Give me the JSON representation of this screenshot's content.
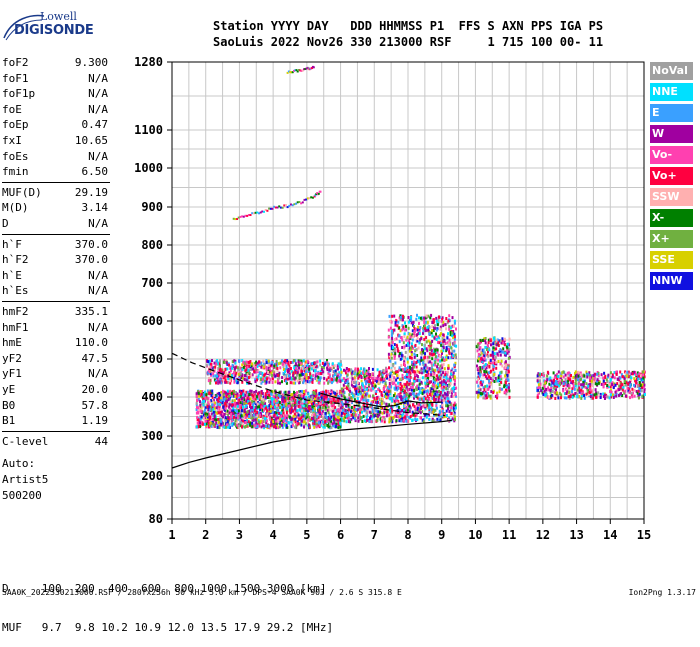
{
  "logo": {
    "brand_top": "Lowell",
    "brand_main": "DIGISONDE"
  },
  "header": {
    "line1": "Station YYYY DAY   DDD HHMMSS P1  FFS S AXN PPS IGA PS",
    "line2": "SaoLuis 2022 Nov26 330 213000 RSF     1 715 100 00- 11"
  },
  "params": [
    {
      "label": "foF2",
      "value": "9.300"
    },
    {
      "label": "foF1",
      "value": "N/A"
    },
    {
      "label": "foF1p",
      "value": "N/A"
    },
    {
      "label": "foE",
      "value": "N/A"
    },
    {
      "label": "foEp",
      "value": "0.47"
    },
    {
      "label": "fxI",
      "value": "10.65"
    },
    {
      "label": "foEs",
      "value": "N/A"
    },
    {
      "label": "fmin",
      "value": "6.50"
    },
    {
      "label": "MUF(D)",
      "value": "29.19"
    },
    {
      "label": "M(D)",
      "value": "3.14"
    },
    {
      "label": "D",
      "value": "N/A"
    },
    {
      "label": "h`F",
      "value": "370.0"
    },
    {
      "label": "h`F2",
      "value": "370.0"
    },
    {
      "label": "h`E",
      "value": "N/A"
    },
    {
      "label": "h`Es",
      "value": "N/A"
    },
    {
      "label": "hmF2",
      "value": "335.1"
    },
    {
      "label": "hmF1",
      "value": "N/A"
    },
    {
      "label": "hmE",
      "value": "110.0"
    },
    {
      "label": "yF2",
      "value": "47.5"
    },
    {
      "label": "yF1",
      "value": "N/A"
    },
    {
      "label": "yE",
      "value": "20.0"
    },
    {
      "label": "B0",
      "value": "57.8"
    },
    {
      "label": "B1",
      "value": "1.19"
    },
    {
      "label": "C-level",
      "value": "44"
    }
  ],
  "auto": {
    "line1": "Auto:",
    "line2": "Artist5",
    "line3": "500200"
  },
  "legend": [
    {
      "label": "NoVal",
      "color": "#a0a0a0"
    },
    {
      "label": "NNE",
      "color": "#00e0ff"
    },
    {
      "label": "E",
      "color": "#3aa0ff"
    },
    {
      "label": "W",
      "color": "#a000a0"
    },
    {
      "label": "Vo-",
      "color": "#ff40b0"
    },
    {
      "label": "Vo+",
      "color": "#ff0040"
    },
    {
      "label": "SSW",
      "color": "#ffb0b0"
    },
    {
      "label": "X-",
      "color": "#008000"
    },
    {
      "label": "X+",
      "color": "#70b040"
    },
    {
      "label": "SSE",
      "color": "#d8d000"
    },
    {
      "label": "NNW",
      "color": "#1010e0"
    }
  ],
  "muf_table": {
    "d_line": "D     100  200  400  600  800 1000 1500 3000 [km]",
    "muf_line": "MUF   9.7  9.8 10.2 10.9 12.0 13.5 17.9 29.2 [MHz]"
  },
  "footer": {
    "left": "SAA0K_2022330213000.RSF / 280fx256h 50 kHz 5.0 km / DPS-4 SAA0K 903 / 2.6 S 315.8 E",
    "right": "Ion2Png 1.3.17"
  },
  "chart_data": {
    "type": "scatter",
    "title": "",
    "xlabel": "",
    "ylabel": "",
    "x_ticks": [
      1,
      2,
      3,
      4,
      5,
      6,
      7,
      8,
      9,
      10,
      11,
      12,
      13,
      14,
      15
    ],
    "y_ticks": [
      80,
      200,
      300,
      400,
      500,
      600,
      700,
      800,
      900,
      1000,
      1100,
      1280
    ],
    "xlim": [
      1,
      15
    ],
    "ylim": [
      80,
      1280
    ],
    "y_scale": "nonlinear",
    "grid": true,
    "echo_clusters": [
      {
        "x_range": [
          1.7,
          6.0
        ],
        "y_range": [
          325,
          420
        ],
        "density": 1800
      },
      {
        "x_range": [
          2.0,
          6.0
        ],
        "y_range": [
          440,
          500
        ],
        "density": 700
      },
      {
        "x_range": [
          6.0,
          9.4
        ],
        "y_range": [
          340,
          480
        ],
        "density": 1300
      },
      {
        "x_range": [
          7.4,
          9.4
        ],
        "y_range": [
          480,
          620
        ],
        "density": 500
      },
      {
        "x_range": [
          10.0,
          11.0
        ],
        "y_range": [
          400,
          560
        ],
        "density": 350
      },
      {
        "x_range": [
          11.8,
          15.0
        ],
        "y_range": [
          400,
          470
        ],
        "density": 600
      }
    ],
    "echo_traces": [
      {
        "x": [
          2.8,
          3.2,
          3.6,
          4.0,
          4.4,
          4.8,
          5.2,
          5.4
        ],
        "y": [
          870,
          880,
          890,
          900,
          905,
          915,
          930,
          945
        ]
      },
      {
        "x": [
          4.4,
          4.7,
          5.0,
          5.2
        ],
        "y": [
          1255,
          1260,
          1265,
          1270
        ]
      }
    ],
    "profile_solid": {
      "x": [
        1.0,
        1.5,
        2.0,
        3.0,
        4.0,
        5.0,
        6.0,
        7.0,
        8.0,
        9.0,
        9.3
      ],
      "y": [
        220,
        234,
        245,
        265,
        285,
        300,
        315,
        322,
        330,
        337,
        340
      ]
    },
    "trace_solid": {
      "x": [
        5.4,
        6.0,
        6.6,
        7.2,
        7.6,
        8.0,
        8.4,
        9.0
      ],
      "y": [
        410,
        395,
        385,
        375,
        378,
        390,
        385,
        387
      ]
    },
    "trace_dashed": {
      "x": [
        1.0,
        1.6,
        2.2,
        3.0,
        4.0,
        5.0,
        6.0,
        7.0,
        8.0,
        8.8,
        9.1
      ],
      "y": [
        515,
        490,
        470,
        445,
        415,
        392,
        383,
        372,
        360,
        355,
        352
      ]
    }
  }
}
